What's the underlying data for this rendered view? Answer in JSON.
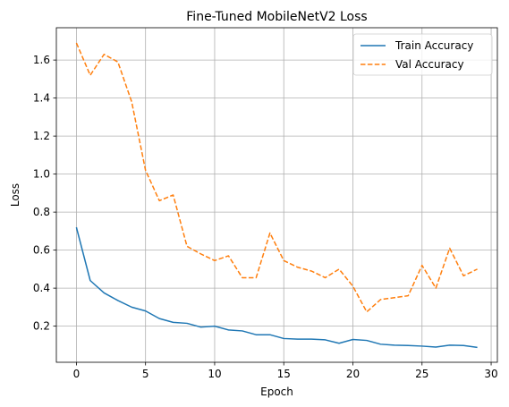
{
  "chart_data": {
    "type": "line",
    "title": "Fine-Tuned MobileNetV2 Loss",
    "xlabel": "Epoch",
    "ylabel": "Loss",
    "xlim": [
      -1.45,
      30.45
    ],
    "ylim": [
      0.01,
      1.77
    ],
    "xticks": [
      0,
      5,
      10,
      15,
      20,
      25,
      30
    ],
    "yticks": [
      0.2,
      0.4,
      0.6,
      0.8,
      1.0,
      1.2,
      1.4,
      1.6
    ],
    "ytick_labels": [
      "0.2",
      "0.4",
      "0.6",
      "0.8",
      "1.0",
      "1.2",
      "1.4",
      "1.6"
    ],
    "grid": true,
    "legend_position": "top-right",
    "x": [
      0,
      1,
      2,
      3,
      4,
      5,
      6,
      7,
      8,
      9,
      10,
      11,
      12,
      13,
      14,
      15,
      16,
      17,
      18,
      19,
      20,
      21,
      22,
      23,
      24,
      25,
      26,
      27,
      28,
      29
    ],
    "series": [
      {
        "name": "Train Accuracy",
        "color": "#1f77b4",
        "style": "solid",
        "values": [
          0.72,
          0.44,
          0.375,
          0.335,
          0.3,
          0.28,
          0.24,
          0.22,
          0.215,
          0.195,
          0.2,
          0.18,
          0.175,
          0.155,
          0.155,
          0.135,
          0.132,
          0.132,
          0.128,
          0.11,
          0.13,
          0.125,
          0.105,
          0.1,
          0.098,
          0.095,
          0.09,
          0.1,
          0.098,
          0.088
        ]
      },
      {
        "name": "Val Accuracy",
        "color": "#ff7f0e",
        "style": "dashed",
        "values": [
          1.69,
          1.52,
          1.63,
          1.59,
          1.38,
          1.02,
          0.86,
          0.89,
          0.62,
          0.58,
          0.545,
          0.57,
          0.455,
          0.455,
          0.69,
          0.545,
          0.51,
          0.49,
          0.455,
          0.5,
          0.41,
          0.275,
          0.34,
          0.35,
          0.36,
          0.52,
          0.4,
          0.61,
          0.465,
          0.5
        ]
      }
    ]
  }
}
